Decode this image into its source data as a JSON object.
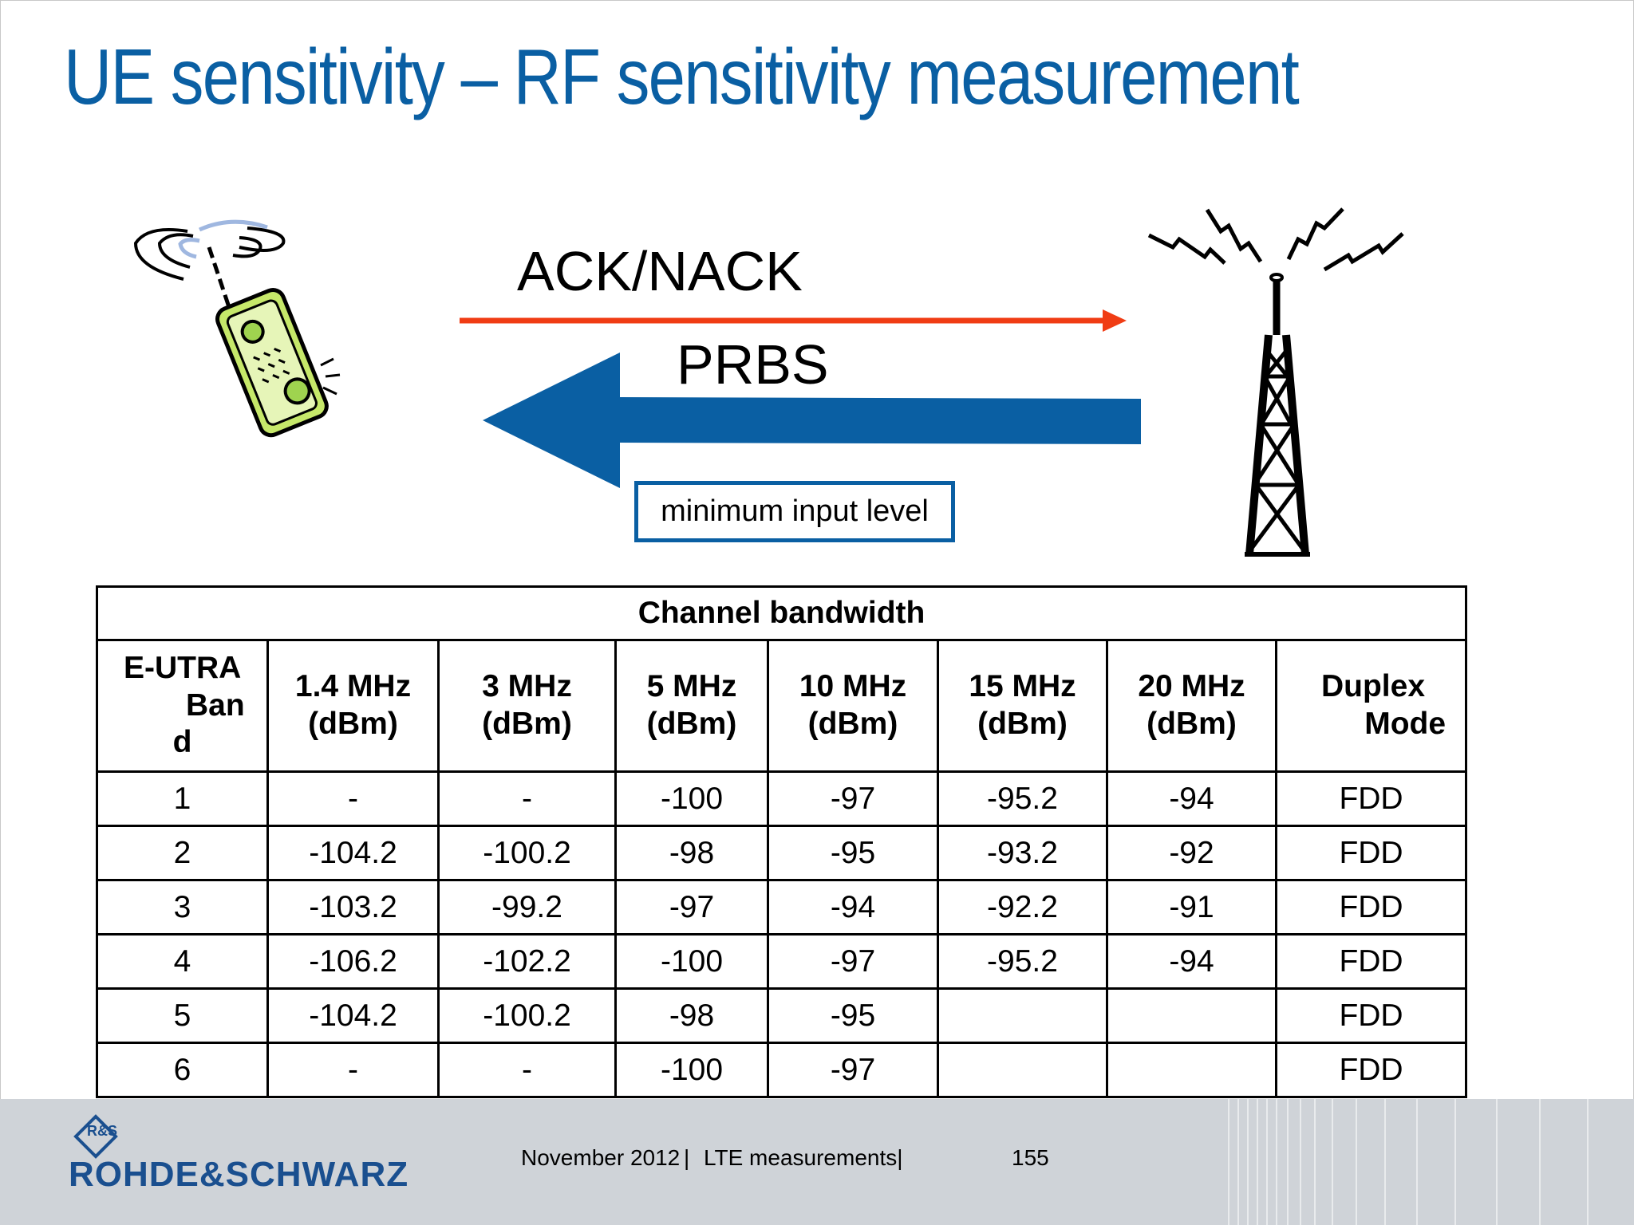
{
  "slide": {
    "title": "UE sensitivity – RF sensitivity measurement"
  },
  "diagram": {
    "ack_label": "ACK/NACK",
    "prbs_label": "PRBS",
    "min_input_label": "minimum input level",
    "colors": {
      "ack_arrow": "#f03c14",
      "prbs_arrow": "#0a5fa3",
      "box_border": "#0a5fa3"
    },
    "icons": [
      "mobile-phone-icon",
      "base-station-tower-icon"
    ]
  },
  "table": {
    "group_header": "Channel bandwidth",
    "band_header": [
      "E-UTRA",
      "Ban",
      "d"
    ],
    "bandwidth_headers": [
      [
        "1.4 MHz",
        "(dBm)"
      ],
      [
        "3 MHz",
        "(dBm)"
      ],
      [
        "5 MHz",
        "(dBm)"
      ],
      [
        "10 MHz",
        "(dBm)"
      ],
      [
        "15 MHz",
        "(dBm)"
      ],
      [
        "20 MHz",
        "(dBm)"
      ]
    ],
    "duplex_header": [
      "Duplex",
      "Mode"
    ],
    "rows": [
      [
        "1",
        "-",
        "-",
        "-100",
        "-97",
        "-95.2",
        "-94",
        "FDD"
      ],
      [
        "2",
        "-104.2",
        "-100.2",
        "-98",
        "-95",
        "-93.2",
        "-92",
        "FDD"
      ],
      [
        "3",
        "-103.2",
        "-99.2",
        "-97",
        "-94",
        "-92.2",
        "-91",
        "FDD"
      ],
      [
        "4",
        "-106.2",
        "-102.2",
        "-100",
        "-97",
        "-95.2",
        "-94",
        "FDD"
      ],
      [
        "5",
        "-104.2",
        "-100.2",
        "-98",
        "-95",
        "",
        "",
        "FDD"
      ],
      [
        "6",
        "-",
        "-",
        "-100",
        "-97",
        "",
        "",
        "FDD"
      ]
    ]
  },
  "footer": {
    "date": "November 2012",
    "separator": "|",
    "topic": "LTE measurements|",
    "page_number": "155",
    "logo_text": "ROHDE&SCHWARZ",
    "logo_mark": "R&S",
    "brand_color": "#1a4f8f"
  }
}
